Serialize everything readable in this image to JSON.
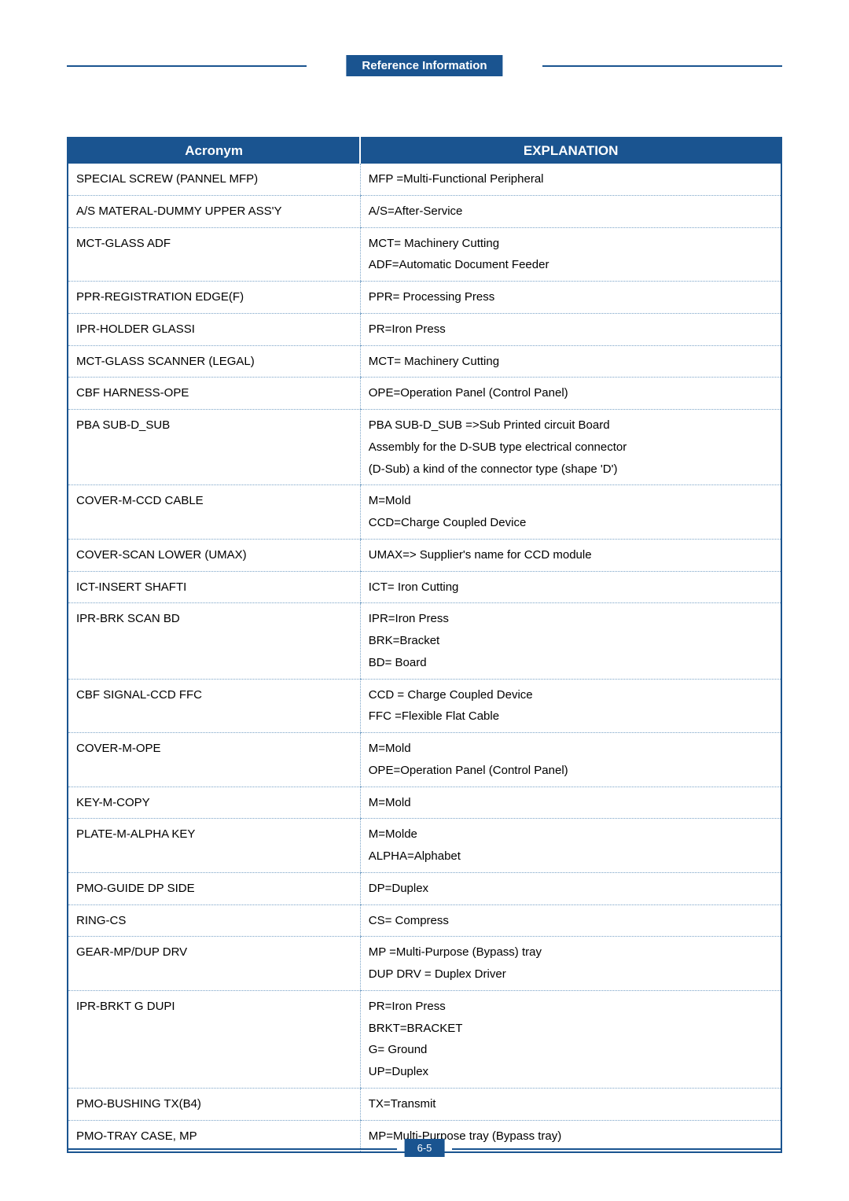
{
  "header": {
    "title": "Reference Information"
  },
  "footer": {
    "page_number": "6-5"
  },
  "table": {
    "columns": [
      "Acronym",
      "EXPLANATION"
    ],
    "col_widths": [
      "41%",
      "59%"
    ],
    "header_bg": "#1a5490",
    "header_fg": "#ffffff",
    "border_color": "#1a5490",
    "dotted_color": "#7aa3c7",
    "font_size_header": 17,
    "font_size_body": 15,
    "rows": [
      {
        "acronym": "SPECIAL SCREW (PANNEL MFP)",
        "explanation": "MFP =Multi-Functional Peripheral"
      },
      {
        "acronym": "A/S MATERAL-DUMMY UPPER ASS'Y",
        "explanation": "A/S=After-Service"
      },
      {
        "acronym": "MCT-GLASS ADF",
        "explanation": "MCT= Machinery  Cutting\nADF=Automatic Document Feeder"
      },
      {
        "acronym": "PPR-REGISTRATION EDGE(F)",
        "explanation": "PPR= Processing  Press"
      },
      {
        "acronym": "IPR-HOLDER GLASSI",
        "explanation": "PR=Iron Press"
      },
      {
        "acronym": "MCT-GLASS SCANNER (LEGAL)",
        "explanation": "MCT= Machinery Cutting"
      },
      {
        "acronym": "CBF HARNESS-OPE",
        "explanation": "OPE=Operation Panel (Control Panel)"
      },
      {
        "acronym": "PBA SUB-D_SUB",
        "explanation": "PBA SUB-D_SUB =>Sub Printed circuit Board\nAssembly for the D-SUB type electrical connector\n(D-Sub) a kind of the connector type (shape 'D')"
      },
      {
        "acronym": "COVER-M-CCD CABLE",
        "explanation": "M=Mold\nCCD=Charge Coupled Device"
      },
      {
        "acronym": "COVER-SCAN LOWER (UMAX)",
        "explanation": "UMAX=> Supplier's name for CCD module"
      },
      {
        "acronym": "ICT-INSERT SHAFTI",
        "explanation": "ICT= Iron Cutting"
      },
      {
        "acronym": "IPR-BRK SCAN BD",
        "explanation": "IPR=Iron Press\nBRK=Bracket\nBD= Board"
      },
      {
        "acronym": "CBF SIGNAL-CCD FFC",
        "explanation": "CCD = Charge Coupled Device\nFFC =Flexible Flat Cable"
      },
      {
        "acronym": "COVER-M-OPE",
        "explanation": "M=Mold\nOPE=Operation Panel (Control Panel)"
      },
      {
        "acronym": "KEY-M-COPY",
        "explanation": "M=Mold"
      },
      {
        "acronym": "PLATE-M-ALPHA KEY",
        "explanation": "M=Molde\nALPHA=Alphabet"
      },
      {
        "acronym": "PMO-GUIDE DP SIDE",
        "explanation": "DP=Duplex"
      },
      {
        "acronym": "RING-CS",
        "explanation": "CS= Compress"
      },
      {
        "acronym": "GEAR-MP/DUP DRV",
        "explanation": "MP =Multi-Purpose (Bypass) tray\nDUP DRV = Duplex Driver"
      },
      {
        "acronym": "IPR-BRKT G DUPI",
        "explanation": "PR=Iron Press\nBRKT=BRACKET\nG= Ground\nUP=Duplex"
      },
      {
        "acronym": "PMO-BUSHING TX(B4)",
        "explanation": "TX=Transmit"
      },
      {
        "acronym": "PMO-TRAY CASE, MP",
        "explanation": "MP=Multi-Purpose tray (Bypass tray)"
      }
    ]
  },
  "colors": {
    "brand_blue": "#1a5490",
    "white": "#ffffff",
    "black": "#000000",
    "dotted": "#7aa3c7"
  }
}
